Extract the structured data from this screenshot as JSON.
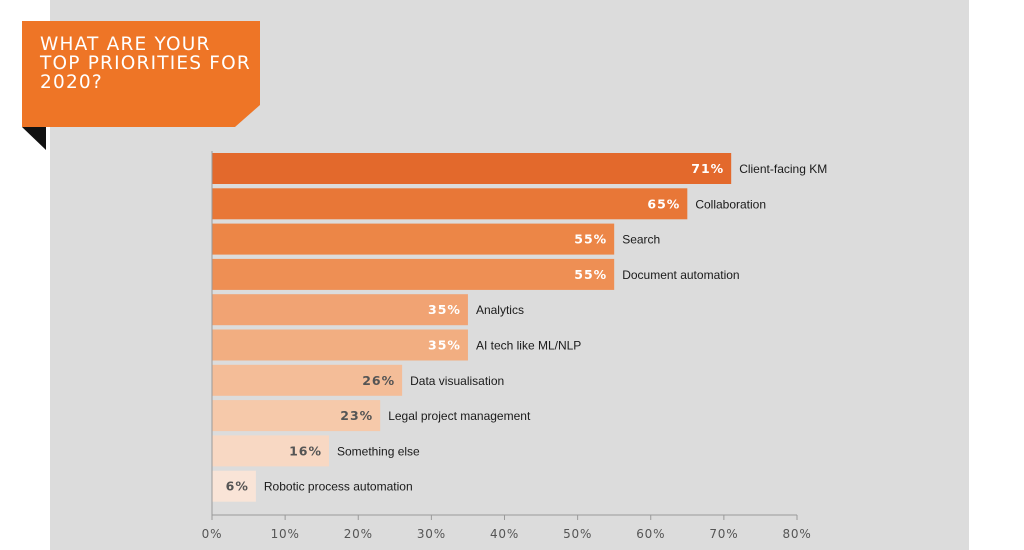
{
  "title": "WHAT ARE YOUR TOP PRIORITIES FOR 2020?",
  "colors": {
    "banner": "#ee7526",
    "banner_shadow": "#111111",
    "panel": "#dcdcdc",
    "axis": "#9a9a9a"
  },
  "chart_data": {
    "type": "bar",
    "orientation": "horizontal",
    "title": "WHAT ARE YOUR TOP PRIORITIES FOR 2020?",
    "categories": [
      "Client-facing KM",
      "Collaboration",
      "Search",
      "Document automation",
      "Analytics",
      "AI tech like ML/NLP",
      "Data visualisation",
      "Legal project management",
      "Something else",
      "Robotic process automation"
    ],
    "values": [
      71,
      65,
      55,
      55,
      35,
      35,
      26,
      23,
      16,
      6
    ],
    "value_labels": [
      "71%",
      "65%",
      "55%",
      "55%",
      "35%",
      "35%",
      "26%",
      "23%",
      "16%",
      "6%"
    ],
    "bar_colors": [
      "#e3692c",
      "#e87737",
      "#ec8647",
      "#ee8f54",
      "#f1a373",
      "#f2ae81",
      "#f4bd98",
      "#f6c9aa",
      "#f8d8c3",
      "#f9e4d7"
    ],
    "value_label_colors": [
      "#ffffff",
      "#ffffff",
      "#ffffff",
      "#ffffff",
      "#ffffff",
      "#ffffff",
      "#555555",
      "#555555",
      "#555555",
      "#555555"
    ],
    "xlim": [
      0,
      80
    ],
    "xticks": [
      0,
      10,
      20,
      30,
      40,
      50,
      60,
      70,
      80
    ],
    "xtick_labels": [
      "0%",
      "10%",
      "20%",
      "30%",
      "40%",
      "50%",
      "60%",
      "70%",
      "80%"
    ],
    "xlabel": "",
    "ylabel": "",
    "grid": false,
    "legend": "none"
  }
}
